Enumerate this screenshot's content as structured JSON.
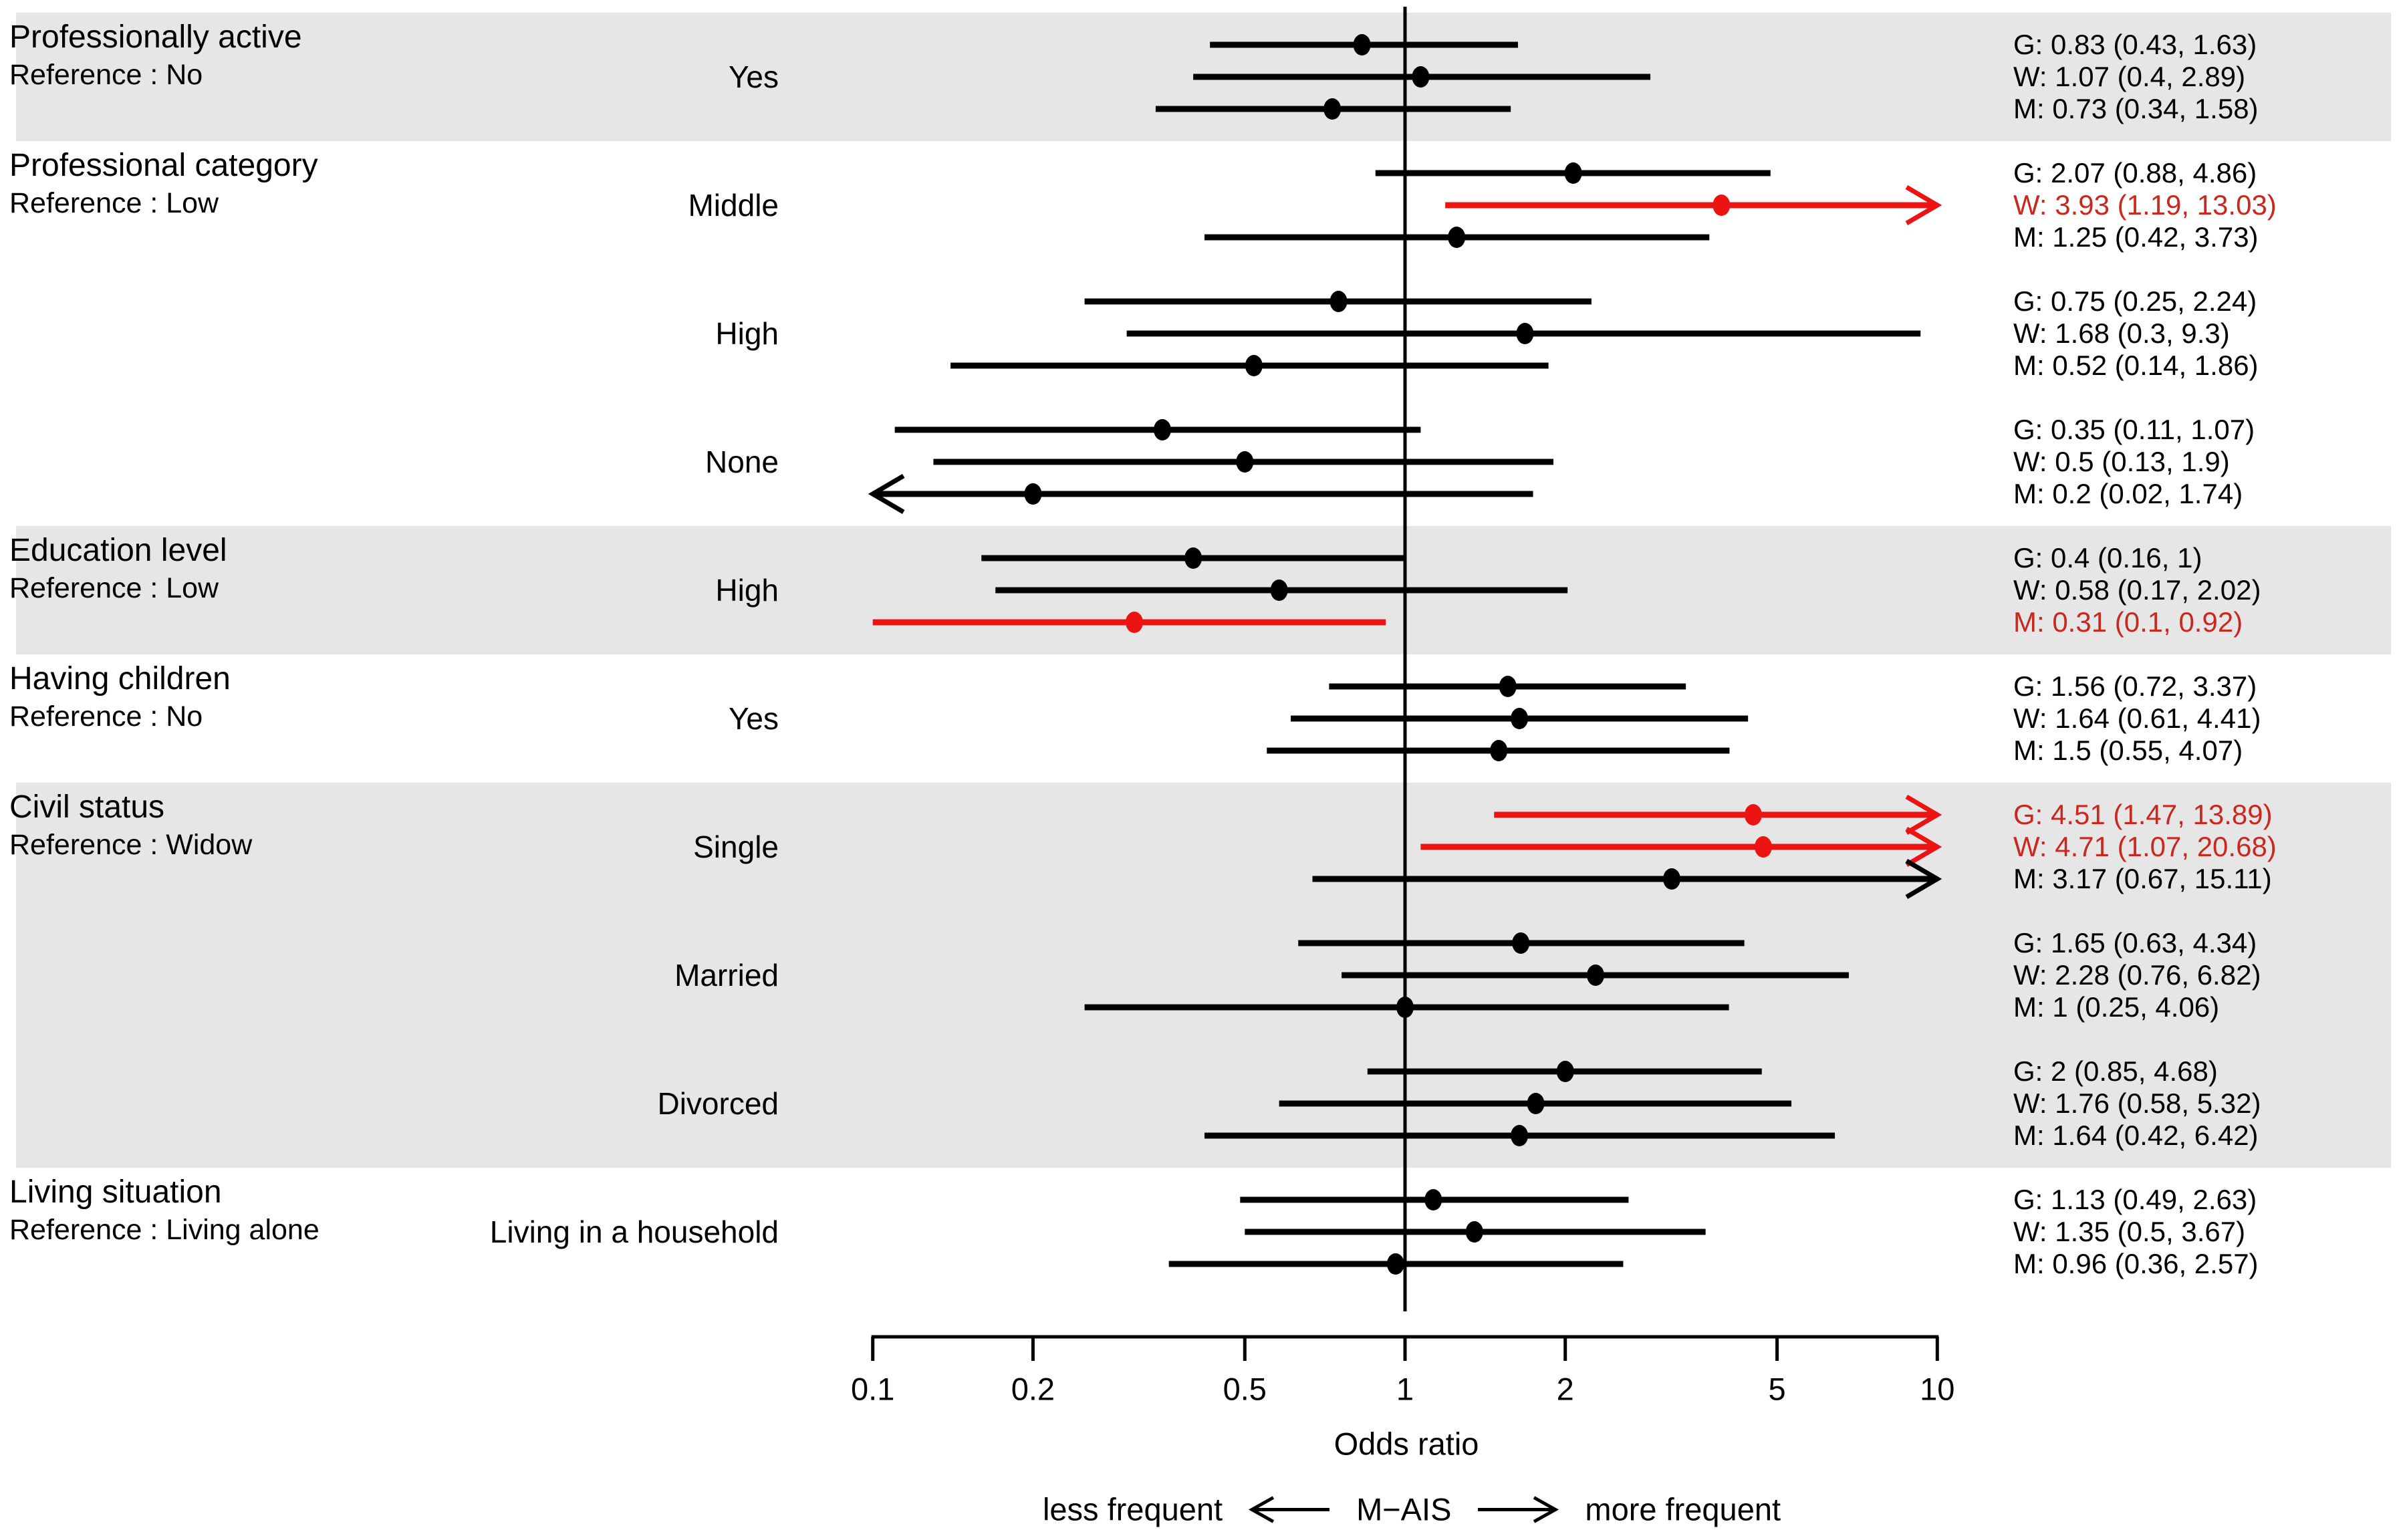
{
  "colors": {
    "highlight_line": "#ec1313",
    "highlight_text": "#c9281e",
    "normal": "#000000",
    "band_gray": "#e6e6e6",
    "background": "#ffffff"
  },
  "chart_data": {
    "type": "forest",
    "x_axis": {
      "label": "Odds ratio",
      "scale": "log10",
      "range": [
        0.1,
        10
      ],
      "ticks": [
        0.1,
        0.2,
        0.5,
        1,
        2,
        5,
        10
      ],
      "reference_line": 1
    },
    "caption": {
      "left": "less frequent",
      "center": "M−AIS",
      "right": "more frequent"
    },
    "series_labels": [
      "G",
      "W",
      "M"
    ],
    "groups": [
      {
        "title": "Professionally active",
        "reference": "Reference : No",
        "shaded": true,
        "categories": [
          {
            "label": "Yes",
            "estimates": [
              {
                "series": "G",
                "or": 0.83,
                "lo": 0.43,
                "hi": 1.63,
                "highlighted": false
              },
              {
                "series": "W",
                "or": 1.07,
                "lo": 0.4,
                "hi": 2.89,
                "highlighted": false
              },
              {
                "series": "M",
                "or": 0.73,
                "lo": 0.34,
                "hi": 1.58,
                "highlighted": false
              }
            ]
          }
        ]
      },
      {
        "title": "Professional category",
        "reference": "Reference : Low",
        "shaded": false,
        "categories": [
          {
            "label": "Middle",
            "estimates": [
              {
                "series": "G",
                "or": 2.07,
                "lo": 0.88,
                "hi": 4.86,
                "highlighted": false
              },
              {
                "series": "W",
                "or": 3.93,
                "lo": 1.19,
                "hi": 13.03,
                "highlighted": true
              },
              {
                "series": "M",
                "or": 1.25,
                "lo": 0.42,
                "hi": 3.73,
                "highlighted": false
              }
            ]
          },
          {
            "label": "High",
            "estimates": [
              {
                "series": "G",
                "or": 0.75,
                "lo": 0.25,
                "hi": 2.24,
                "highlighted": false
              },
              {
                "series": "W",
                "or": 1.68,
                "lo": 0.3,
                "hi": 9.3,
                "highlighted": false
              },
              {
                "series": "M",
                "or": 0.52,
                "lo": 0.14,
                "hi": 1.86,
                "highlighted": false
              }
            ]
          },
          {
            "label": "None",
            "estimates": [
              {
                "series": "G",
                "or": 0.35,
                "lo": 0.11,
                "hi": 1.07,
                "highlighted": false
              },
              {
                "series": "W",
                "or": 0.5,
                "lo": 0.13,
                "hi": 1.9,
                "highlighted": false
              },
              {
                "series": "M",
                "or": 0.2,
                "lo": 0.02,
                "hi": 1.74,
                "highlighted": false
              }
            ]
          }
        ]
      },
      {
        "title": "Education level",
        "reference": "Reference : Low",
        "shaded": true,
        "categories": [
          {
            "label": "High",
            "estimates": [
              {
                "series": "G",
                "or": 0.4,
                "lo": 0.16,
                "hi": 1,
                "highlighted": false
              },
              {
                "series": "W",
                "or": 0.58,
                "lo": 0.17,
                "hi": 2.02,
                "highlighted": false
              },
              {
                "series": "M",
                "or": 0.31,
                "lo": 0.1,
                "hi": 0.92,
                "highlighted": true
              }
            ]
          }
        ]
      },
      {
        "title": "Having children",
        "reference": "Reference : No",
        "shaded": false,
        "categories": [
          {
            "label": "Yes",
            "estimates": [
              {
                "series": "G",
                "or": 1.56,
                "lo": 0.72,
                "hi": 3.37,
                "highlighted": false
              },
              {
                "series": "W",
                "or": 1.64,
                "lo": 0.61,
                "hi": 4.41,
                "highlighted": false
              },
              {
                "series": "M",
                "or": 1.5,
                "lo": 0.55,
                "hi": 4.07,
                "highlighted": false
              }
            ]
          }
        ]
      },
      {
        "title": "Civil status",
        "reference": "Reference : Widow",
        "shaded": true,
        "categories": [
          {
            "label": "Single",
            "estimates": [
              {
                "series": "G",
                "or": 4.51,
                "lo": 1.47,
                "hi": 13.89,
                "highlighted": true
              },
              {
                "series": "W",
                "or": 4.71,
                "lo": 1.07,
                "hi": 20.68,
                "highlighted": true
              },
              {
                "series": "M",
                "or": 3.17,
                "lo": 0.67,
                "hi": 15.11,
                "highlighted": false
              }
            ]
          },
          {
            "label": "Married",
            "estimates": [
              {
                "series": "G",
                "or": 1.65,
                "lo": 0.63,
                "hi": 4.34,
                "highlighted": false
              },
              {
                "series": "W",
                "or": 2.28,
                "lo": 0.76,
                "hi": 6.82,
                "highlighted": false
              },
              {
                "series": "M",
                "or": 1,
                "lo": 0.25,
                "hi": 4.06,
                "highlighted": false
              }
            ]
          },
          {
            "label": "Divorced",
            "estimates": [
              {
                "series": "G",
                "or": 2,
                "lo": 0.85,
                "hi": 4.68,
                "highlighted": false
              },
              {
                "series": "W",
                "or": 1.76,
                "lo": 0.58,
                "hi": 5.32,
                "highlighted": false
              },
              {
                "series": "M",
                "or": 1.64,
                "lo": 0.42,
                "hi": 6.42,
                "highlighted": false
              }
            ]
          }
        ]
      },
      {
        "title": "Living situation",
        "reference": "Reference : Living alone",
        "shaded": false,
        "categories": [
          {
            "label": "Living in a household",
            "estimates": [
              {
                "series": "G",
                "or": 1.13,
                "lo": 0.49,
                "hi": 2.63,
                "highlighted": false
              },
              {
                "series": "W",
                "or": 1.35,
                "lo": 0.5,
                "hi": 3.67,
                "highlighted": false
              },
              {
                "series": "M",
                "or": 0.96,
                "lo": 0.36,
                "hi": 2.57,
                "highlighted": false
              }
            ]
          }
        ]
      }
    ]
  }
}
